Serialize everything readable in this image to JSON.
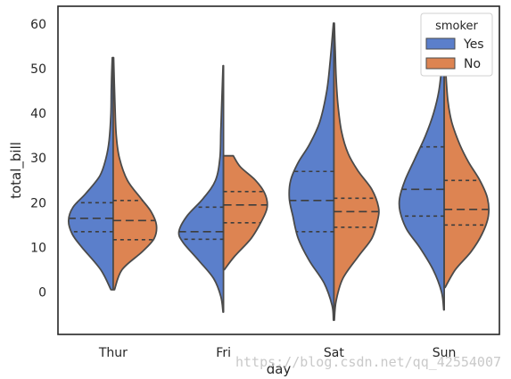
{
  "chart_data": {
    "type": "violin",
    "split": true,
    "inner": "quartile",
    "xlabel": "day",
    "ylabel": "total_bill",
    "categories": [
      "Thur",
      "Fri",
      "Sat",
      "Sun"
    ],
    "ylim": [
      -9.5,
      64
    ],
    "yticks": [
      0,
      10,
      20,
      30,
      40,
      50,
      60
    ],
    "legend": {
      "title": "smoker",
      "position": "top-right"
    },
    "series": [
      {
        "name": "Yes",
        "color": "#5B7FCB",
        "violins": [
          {
            "category": "Thur",
            "min": 0.5,
            "max": 52.5,
            "q1": 13.5,
            "median": 16.5,
            "q3": 20,
            "profile": [
              [
                0.5,
                0.05
              ],
              [
                5,
                0.28
              ],
              [
                10,
                0.7
              ],
              [
                13,
                0.92
              ],
              [
                16,
                1.0
              ],
              [
                19,
                0.9
              ],
              [
                22,
                0.62
              ],
              [
                26,
                0.3
              ],
              [
                30,
                0.16
              ],
              [
                34,
                0.09
              ],
              [
                40,
                0.05
              ],
              [
                46,
                0.04
              ],
              [
                52.5,
                0.02
              ]
            ]
          },
          {
            "category": "Fri",
            "min": -4.5,
            "max": 50.7,
            "q1": 11.8,
            "median": 13.5,
            "q3": 19,
            "profile": [
              [
                -4.5,
                0.01
              ],
              [
                -1,
                0.06
              ],
              [
                3,
                0.22
              ],
              [
                7,
                0.55
              ],
              [
                11,
                0.9
              ],
              [
                13.5,
                1.0
              ],
              [
                17,
                0.82
              ],
              [
                21,
                0.45
              ],
              [
                25,
                0.18
              ],
              [
                30,
                0.08
              ],
              [
                36,
                0.06
              ],
              [
                42,
                0.04
              ],
              [
                50.7,
                0.01
              ]
            ]
          },
          {
            "category": "Sat",
            "min": -6.3,
            "max": 60.2,
            "q1": 13.5,
            "median": 20.5,
            "q3": 27,
            "profile": [
              [
                -6.3,
                0.01
              ],
              [
                -3,
                0.04
              ],
              [
                2,
                0.22
              ],
              [
                7,
                0.55
              ],
              [
                12,
                0.8
              ],
              [
                17,
                0.92
              ],
              [
                21,
                1.0
              ],
              [
                25,
                0.97
              ],
              [
                29,
                0.8
              ],
              [
                33,
                0.55
              ],
              [
                38,
                0.32
              ],
              [
                45,
                0.16
              ],
              [
                52,
                0.08
              ],
              [
                60.2,
                0.01
              ]
            ]
          },
          {
            "category": "Sun",
            "min": -4,
            "max": 56,
            "q1": 17,
            "median": 23,
            "q3": 32.5,
            "profile": [
              [
                -4,
                0.01
              ],
              [
                0,
                0.06
              ],
              [
                5,
                0.25
              ],
              [
                10,
                0.55
              ],
              [
                14,
                0.84
              ],
              [
                18,
                0.99
              ],
              [
                21,
                1.0
              ],
              [
                25,
                0.88
              ],
              [
                30,
                0.65
              ],
              [
                35,
                0.42
              ],
              [
                40,
                0.24
              ],
              [
                45,
                0.12
              ],
              [
                51,
                0.05
              ],
              [
                56,
                0.01
              ]
            ]
          }
        ]
      },
      {
        "name": "No",
        "color": "#DD8452",
        "violins": [
          {
            "category": "Thur",
            "min": 0.5,
            "max": 52.5,
            "q1": 11.7,
            "median": 16,
            "q3": 20.5,
            "profile": [
              [
                0.5,
                0.03
              ],
              [
                5,
                0.2
              ],
              [
                9,
                0.65
              ],
              [
                12,
                0.92
              ],
              [
                15,
                0.97
              ],
              [
                18,
                0.85
              ],
              [
                21,
                0.62
              ],
              [
                25,
                0.32
              ],
              [
                30,
                0.14
              ],
              [
                35,
                0.07
              ],
              [
                42,
                0.04
              ],
              [
                52.5,
                0.01
              ]
            ]
          },
          {
            "category": "Fri",
            "min": 5,
            "max": 30.5,
            "q1": 15.5,
            "median": 19.5,
            "q3": 22.5,
            "profile": [
              [
                5,
                0.02
              ],
              [
                8,
                0.25
              ],
              [
                12,
                0.62
              ],
              [
                16,
                0.86
              ],
              [
                19,
                0.98
              ],
              [
                22,
                0.93
              ],
              [
                25,
                0.72
              ],
              [
                28,
                0.38
              ],
              [
                30.5,
                0.22
              ]
            ]
          },
          {
            "category": "Sat",
            "min": -6.3,
            "max": 60.2,
            "q1": 14.5,
            "median": 18,
            "q3": 21,
            "profile": [
              [
                -6.3,
                0.01
              ],
              [
                -2,
                0.05
              ],
              [
                3,
                0.2
              ],
              [
                8,
                0.55
              ],
              [
                12,
                0.85
              ],
              [
                16,
                0.98
              ],
              [
                19,
                1.0
              ],
              [
                23,
                0.85
              ],
              [
                27,
                0.55
              ],
              [
                31,
                0.32
              ],
              [
                36,
                0.17
              ],
              [
                42,
                0.09
              ],
              [
                48,
                0.05
              ],
              [
                54,
                0.03
              ],
              [
                60.2,
                0.01
              ]
            ]
          },
          {
            "category": "Sun",
            "min": 1,
            "max": 50,
            "q1": 15,
            "median": 18.5,
            "q3": 25,
            "profile": [
              [
                1,
                0.02
              ],
              [
                5,
                0.25
              ],
              [
                9,
                0.6
              ],
              [
                13,
                0.85
              ],
              [
                17,
                0.99
              ],
              [
                21,
                0.97
              ],
              [
                25,
                0.8
              ],
              [
                29,
                0.55
              ],
              [
                33,
                0.35
              ],
              [
                38,
                0.17
              ],
              [
                43,
                0.08
              ],
              [
                50,
                0.03
              ]
            ]
          }
        ]
      }
    ]
  },
  "watermark": "https://blog.csdn.net/qq_42554007"
}
